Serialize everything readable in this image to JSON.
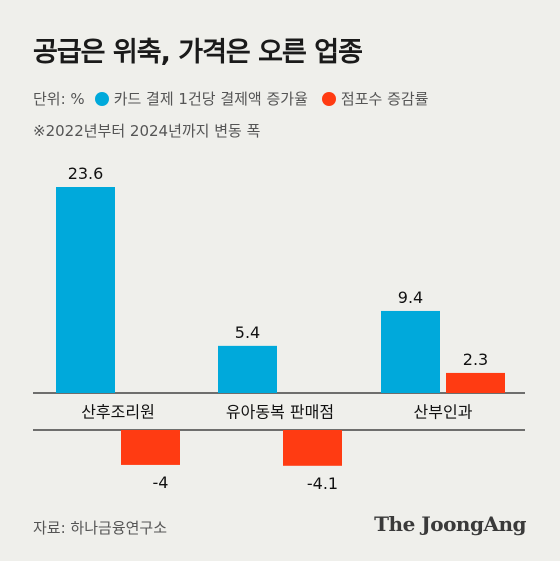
{
  "title": "공급은 위축, 가격은 오른 업종",
  "legend": {
    "unit": "단위: %",
    "items": [
      {
        "label": "카드 결제 1건당 결제액 증가율",
        "color": "#00a9db"
      },
      {
        "label": "점포수 증감률",
        "color": "#ff3b12"
      }
    ]
  },
  "note": "※2022년부터 2024년까지 변동 폭",
  "source": "자료: 하나금융연구소",
  "brand": "The JoongAng",
  "chart_data": {
    "type": "bar",
    "categories": [
      "산후조리원",
      "유아동복 판매점",
      "산부인과"
    ],
    "series": [
      {
        "name": "카드 결제 1건당 결제액 증가율",
        "values": [
          23.6,
          5.4,
          9.4
        ],
        "color": "#00a9db"
      },
      {
        "name": "점포수 증감률",
        "values": [
          -4,
          -4.1,
          2.3
        ],
        "color": "#ff3b12"
      }
    ],
    "value_labels": [
      [
        "23.6",
        "5.4",
        "9.4"
      ],
      [
        "-4",
        "-4.1",
        "2.3"
      ]
    ],
    "grid": false
  }
}
